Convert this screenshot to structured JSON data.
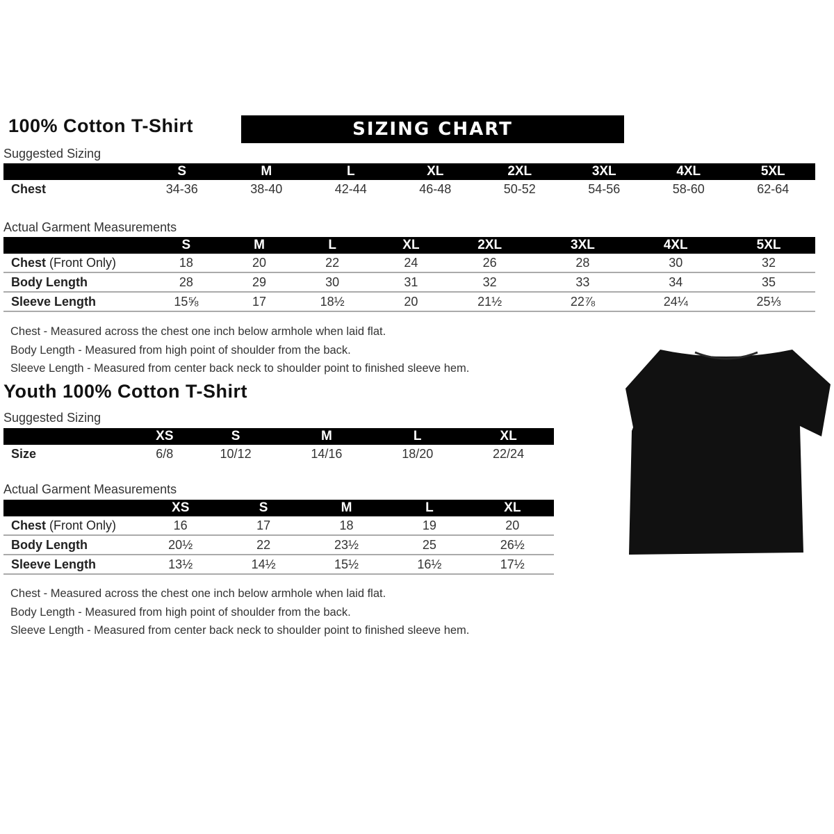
{
  "banner": "SIZING CHART",
  "adult": {
    "title": "100% Cotton T-Shirt",
    "suggested_label": "Suggested Sizing",
    "sizes": [
      "S",
      "M",
      "L",
      "XL",
      "2XL",
      "3XL",
      "4XL",
      "5XL"
    ],
    "chest_label": "Chest",
    "chest": [
      "34-36",
      "38-40",
      "42-44",
      "46-48",
      "50-52",
      "54-56",
      "58-60",
      "62-64"
    ],
    "actual_label": "Actual Garment Measurements",
    "rows": [
      {
        "label": "Chest",
        "label_extra": " (Front Only)",
        "values": [
          "18",
          "20",
          "22",
          "24",
          "26",
          "28",
          "30",
          "32"
        ]
      },
      {
        "label": "Body Length",
        "label_extra": "",
        "values": [
          "28",
          "29",
          "30",
          "31",
          "32",
          "33",
          "34",
          "35"
        ]
      },
      {
        "label": "Sleeve Length",
        "label_extra": "",
        "values": [
          "15⅝",
          "17",
          "18½",
          "20",
          "21½",
          "22⅞",
          "24¼",
          "25⅓"
        ]
      }
    ],
    "notes": [
      "Chest - Measured across the chest one inch below armhole when laid flat.",
      "Body Length - Measured from high point of shoulder from the back.",
      "Sleeve Length - Measured from center back neck to shoulder point to finished sleeve hem."
    ]
  },
  "youth": {
    "title": "Youth 100% Cotton T-Shirt",
    "suggested_label": "Suggested Sizing",
    "sizes": [
      "XS",
      "S",
      "M",
      "L",
      "XL"
    ],
    "size_label": "Size",
    "size_values": [
      "6/8",
      "10/12",
      "14/16",
      "18/20",
      "22/24"
    ],
    "actual_label": "Actual Garment Measurements",
    "rows": [
      {
        "label": "Chest",
        "label_extra": " (Front Only)",
        "values": [
          "16",
          "17",
          "18",
          "19",
          "20"
        ]
      },
      {
        "label": "Body Length",
        "label_extra": "",
        "values": [
          "20½",
          "22",
          "23½",
          "25",
          "26½"
        ]
      },
      {
        "label": "Sleeve Length",
        "label_extra": "",
        "values": [
          "13½",
          "14½",
          "15½",
          "16½",
          "17½"
        ]
      }
    ],
    "notes": [
      "Chest - Measured across the chest one inch below armhole when laid flat.",
      "Body Length - Measured from high point of shoulder from the back.",
      "Sleeve Length - Measured from center back neck to shoulder point to finished sleeve hem."
    ]
  },
  "shirt_color": "#111111"
}
